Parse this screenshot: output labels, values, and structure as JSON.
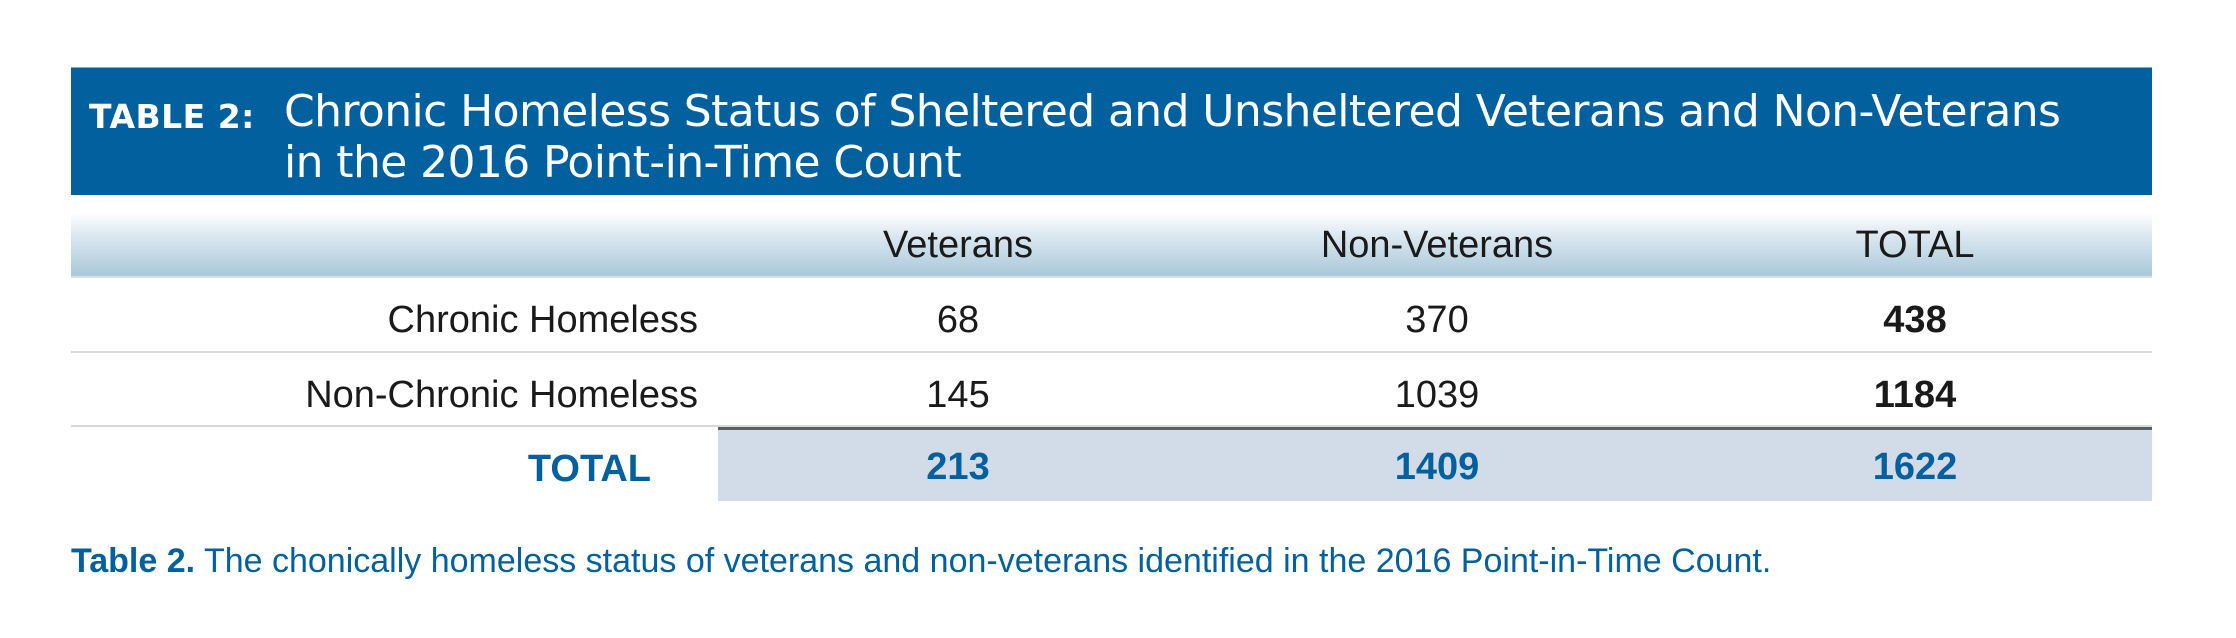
{
  "title": {
    "label": "TABLE 2:",
    "line1": "Chronic Homeless Status of Sheltered and Unsheltered Veterans and Non-Veterans",
    "line2": "in the 2016 Point-in-Time Count"
  },
  "table": {
    "columns": [
      "Veterans",
      "Non-Veterans",
      "TOTAL"
    ],
    "rows": [
      {
        "label": "Chronic Homeless",
        "values": [
          "68",
          "370",
          "438"
        ]
      },
      {
        "label": "Non-Chronic Homeless",
        "values": [
          "145",
          "1039",
          "1184"
        ]
      }
    ],
    "total": {
      "label": "TOTAL",
      "values": [
        "213",
        "1409",
        "1622"
      ]
    }
  },
  "caption": {
    "label": "Table 2.",
    "text": "The chonically homeless status of veterans and non-veterans identified in the 2016 Point-in-Time Count."
  },
  "colors": {
    "brand_blue": "#02609e",
    "total_band": "#d2dce8",
    "header_gradient_end": "#a9c8da"
  }
}
